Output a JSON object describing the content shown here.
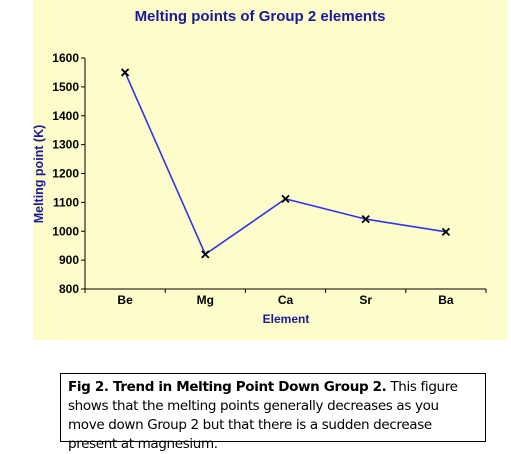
{
  "chart_data": {
    "type": "line",
    "title": "Melting points of Group 2 elements",
    "xlabel": "Element",
    "ylabel": "Melting point (K)",
    "categories": [
      "Be",
      "Mg",
      "Ca",
      "Sr",
      "Ba"
    ],
    "series": [
      {
        "values": [
          1550,
          920,
          1112,
          1042,
          998
        ]
      }
    ],
    "ylim": [
      800,
      1600
    ],
    "yticks": [
      "800",
      "900",
      "1000",
      "1100",
      "1200",
      "1300",
      "1400",
      "1500",
      "1600"
    ],
    "grid": false,
    "legend": "none",
    "colors": {
      "line": "#3333ee",
      "marker": "#000000",
      "title": "#1a1a99",
      "axis_label": "#1a1a99",
      "plot_background": "#fdfdcc"
    }
  },
  "caption": {
    "bold_text": "Fig 2. Trend in Melting Point Down Group 2.",
    "text": " This figure shows that the melting points generally decreases as you move down Group 2 but that there is a sudden decrease present at magnesium."
  }
}
